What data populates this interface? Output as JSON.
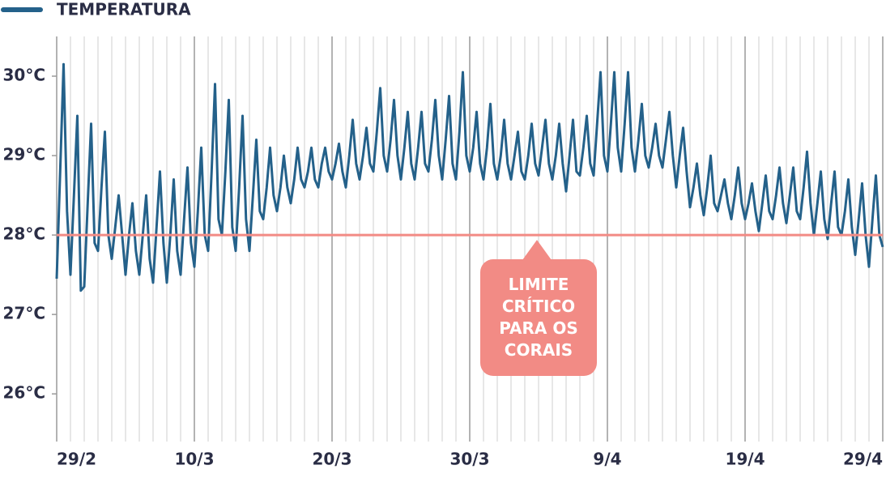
{
  "chart_data": {
    "type": "line",
    "legend": "top-left",
    "series": [
      {
        "name": "TEMPERATURA",
        "color": "#24618a",
        "values": [
          27.45,
          28.8,
          30.15,
          28.3,
          27.5,
          28.5,
          29.5,
          27.3,
          27.35,
          28.4,
          29.4,
          27.9,
          27.8,
          28.6,
          29.3,
          28.0,
          27.7,
          28.1,
          28.5,
          28.0,
          27.5,
          28.0,
          28.4,
          27.8,
          27.5,
          28.0,
          28.5,
          27.7,
          27.4,
          28.1,
          28.8,
          27.9,
          27.4,
          28.0,
          28.7,
          27.8,
          27.5,
          28.2,
          28.85,
          27.9,
          27.6,
          28.3,
          29.1,
          28.0,
          27.8,
          28.8,
          29.9,
          28.2,
          28.0,
          28.8,
          29.7,
          28.1,
          27.8,
          28.6,
          29.5,
          28.2,
          27.8,
          28.5,
          29.2,
          28.3,
          28.2,
          28.6,
          29.1,
          28.5,
          28.3,
          28.6,
          29.0,
          28.6,
          28.4,
          28.7,
          29.1,
          28.7,
          28.6,
          28.8,
          29.1,
          28.7,
          28.6,
          28.9,
          29.1,
          28.8,
          28.7,
          28.9,
          29.15,
          28.8,
          28.6,
          29.0,
          29.45,
          28.9,
          28.7,
          29.0,
          29.35,
          28.9,
          28.8,
          29.3,
          29.85,
          29.0,
          28.8,
          29.2,
          29.7,
          29.0,
          28.7,
          29.1,
          29.55,
          28.9,
          28.7,
          29.1,
          29.55,
          28.9,
          28.8,
          29.2,
          29.7,
          29.0,
          28.7,
          29.2,
          29.75,
          28.9,
          28.7,
          29.3,
          30.05,
          29.0,
          28.8,
          29.1,
          29.55,
          28.9,
          28.7,
          29.1,
          29.65,
          28.9,
          28.7,
          29.0,
          29.45,
          28.9,
          28.7,
          29.0,
          29.3,
          28.8,
          28.7,
          29.0,
          29.4,
          28.9,
          28.75,
          29.1,
          29.45,
          28.9,
          28.7,
          29.0,
          29.4,
          28.9,
          28.55,
          29.0,
          29.45,
          28.8,
          28.75,
          29.1,
          29.5,
          28.9,
          28.75,
          29.4,
          30.05,
          29.0,
          28.8,
          29.4,
          30.05,
          29.1,
          28.8,
          29.4,
          30.05,
          29.1,
          28.8,
          29.2,
          29.65,
          29.0,
          28.85,
          29.1,
          29.4,
          29.0,
          28.85,
          29.2,
          29.55,
          29.0,
          28.6,
          29.0,
          29.35,
          28.8,
          28.35,
          28.6,
          28.9,
          28.5,
          28.25,
          28.6,
          29.0,
          28.4,
          28.3,
          28.5,
          28.7,
          28.4,
          28.2,
          28.5,
          28.85,
          28.4,
          28.2,
          28.4,
          28.65,
          28.3,
          28.05,
          28.4,
          28.75,
          28.3,
          28.2,
          28.5,
          28.85,
          28.4,
          28.15,
          28.5,
          28.85,
          28.3,
          28.2,
          28.6,
          29.05,
          28.4,
          28.0,
          28.4,
          28.8,
          28.2,
          27.95,
          28.4,
          28.8,
          28.1,
          28.0,
          28.3,
          28.7,
          28.1,
          27.75,
          28.2,
          28.65,
          28.0,
          27.6,
          28.2,
          28.75,
          28.0,
          27.85
        ]
      }
    ],
    "x": [
      0,
      0.25,
      0.5,
      0.75,
      1,
      1.25,
      1.5,
      1.75,
      2,
      2.25,
      2.5,
      2.75,
      3,
      3.25,
      3.5,
      3.75,
      4,
      4.25,
      4.5,
      4.75,
      5,
      5.25,
      5.5,
      5.75,
      6,
      6.25,
      6.5,
      6.75,
      7,
      7.25,
      7.5,
      7.75,
      8,
      8.25,
      8.5,
      8.75,
      9,
      9.25,
      9.5,
      9.75,
      10,
      10.25,
      10.5,
      10.75,
      11,
      11.25,
      11.5,
      11.75,
      12,
      12.25,
      12.5,
      12.75,
      13,
      13.25,
      13.5,
      13.75,
      14,
      14.25,
      14.5,
      14.75,
      15,
      15.25,
      15.5,
      15.75,
      16,
      16.25,
      16.5,
      16.75,
      17,
      17.25,
      17.5,
      17.75,
      18,
      18.25,
      18.5,
      18.75,
      19,
      19.25,
      19.5,
      19.75,
      20,
      20.25,
      20.5,
      20.75,
      21,
      21.25,
      21.5,
      21.75,
      22,
      22.25,
      22.5,
      22.75,
      23,
      23.25,
      23.5,
      23.75,
      24,
      24.25,
      24.5,
      24.75,
      25,
      25.25,
      25.5,
      25.75,
      26,
      26.25,
      26.5,
      26.75,
      27,
      27.25,
      27.5,
      27.75,
      28,
      28.25,
      28.5,
      28.75,
      29,
      29.25,
      29.5,
      29.75,
      30,
      30.25,
      30.5,
      30.75,
      31,
      31.25,
      31.5,
      31.75,
      32,
      32.25,
      32.5,
      32.75,
      33,
      33.25,
      33.5,
      33.75,
      34,
      34.25,
      34.5,
      34.75,
      35,
      35.25,
      35.5,
      35.75,
      36,
      36.25,
      36.5,
      36.75,
      37,
      37.25,
      37.5,
      37.75,
      38,
      38.25,
      38.5,
      38.75,
      39,
      39.25,
      39.5,
      39.75,
      40,
      40.25,
      40.5,
      40.75,
      41,
      41.25,
      41.5,
      41.75,
      42,
      42.25,
      42.5,
      42.75,
      43,
      43.25,
      43.5,
      43.75,
      44,
      44.25,
      44.5,
      44.75,
      45,
      45.25,
      45.5,
      45.75,
      46,
      46.25,
      46.5,
      46.75,
      47,
      47.25,
      47.5,
      47.75,
      48,
      48.25,
      48.5,
      48.75,
      49,
      49.25,
      49.5,
      49.75,
      50,
      50.25,
      50.5,
      50.75,
      51,
      51.25,
      51.5,
      51.75,
      52,
      52.25,
      52.5,
      52.75,
      53,
      53.25,
      53.5,
      53.75,
      54,
      54.25,
      54.5,
      54.75,
      55,
      55.25,
      55.5,
      55.75,
      56,
      56.25,
      56.5,
      56.75,
      57,
      57.25,
      57.5,
      57.75,
      58,
      58.25,
      58.5,
      58.75,
      59,
      59.25,
      59.5,
      59.75,
      60
    ],
    "xlim": [
      0,
      60
    ],
    "xticks": [
      {
        "value": 0,
        "label": "29/2"
      },
      {
        "value": 10,
        "label": "10/3"
      },
      {
        "value": 20,
        "label": "20/3"
      },
      {
        "value": 30,
        "label": "30/3"
      },
      {
        "value": 40,
        "label": "9/4"
      },
      {
        "value": 50,
        "label": "19/4"
      },
      {
        "value": 60,
        "label": "29/4"
      }
    ],
    "xminorticks": [
      0,
      1,
      2,
      3,
      4,
      5,
      6,
      7,
      8,
      9,
      10,
      11,
      12,
      13,
      14,
      15,
      16,
      17,
      18,
      19,
      20,
      21,
      22,
      23,
      24,
      25,
      26,
      27,
      28,
      29,
      30,
      31,
      32,
      33,
      34,
      35,
      36,
      37,
      38,
      39,
      40,
      41,
      42,
      43,
      44,
      45,
      46,
      47,
      48,
      49,
      50,
      51,
      52,
      53,
      54,
      55,
      56,
      57,
      58,
      59,
      60
    ],
    "ylim": [
      25.4,
      30.5
    ],
    "yticks": [
      {
        "value": 26,
        "label": "26°C"
      },
      {
        "value": 27,
        "label": "27°C"
      },
      {
        "value": 28,
        "label": "28°C"
      },
      {
        "value": 29,
        "label": "29°C"
      },
      {
        "value": 30,
        "label": "30°C"
      }
    ],
    "reference_line": {
      "value": 28,
      "color": "#f28b85",
      "label": "LIMITE CRÍTICO PARA OS CORAIS"
    }
  }
}
